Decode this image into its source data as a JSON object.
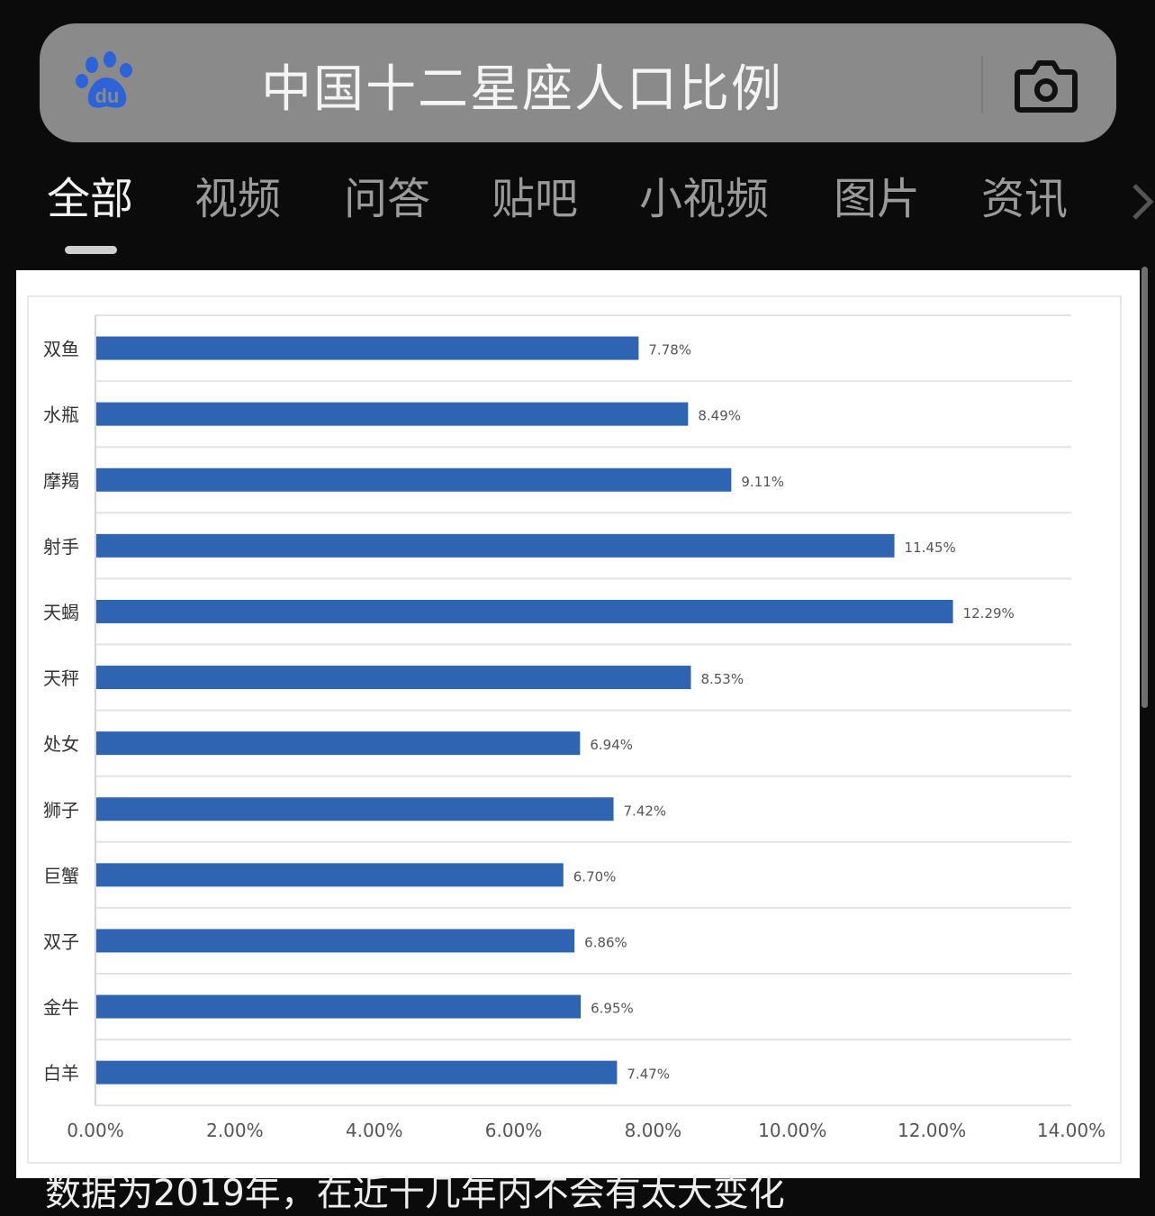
{
  "search": {
    "query": "中国十二星座人口比例",
    "logo_icon": "baidu-paw-logo-icon",
    "camera_icon": "camera-icon"
  },
  "tabs": [
    {
      "label": "全部",
      "active": true
    },
    {
      "label": "视频",
      "active": false
    },
    {
      "label": "问答",
      "active": false
    },
    {
      "label": "贴吧",
      "active": false
    },
    {
      "label": "小视频",
      "active": false
    },
    {
      "label": "图片",
      "active": false
    },
    {
      "label": "资讯",
      "active": false
    }
  ],
  "chart_data": {
    "type": "bar",
    "orientation": "horizontal",
    "categories": [
      "双鱼",
      "水瓶",
      "摩羯",
      "射手",
      "天蝎",
      "天秤",
      "处女",
      "狮子",
      "巨蟹",
      "双子",
      "金牛",
      "白羊"
    ],
    "values": [
      7.78,
      8.49,
      9.11,
      11.45,
      12.29,
      8.53,
      6.94,
      7.42,
      6.7,
      6.86,
      6.95,
      7.47
    ],
    "value_labels": [
      "7.78%",
      "8.49%",
      "9.11%",
      "11.45%",
      "12.29%",
      "8.53%",
      "6.94%",
      "7.42%",
      "6.70%",
      "6.86%",
      "6.95%",
      "7.47%"
    ],
    "x_ticks": [
      "0.00%",
      "2.00%",
      "4.00%",
      "6.00%",
      "8.00%",
      "10.00%",
      "12.00%",
      "14.00%"
    ],
    "xlim": [
      0,
      14
    ],
    "grid": true,
    "bar_color": "#2e64b2"
  },
  "caption": "数据为2019年，在近十几年内不会有太大变化"
}
